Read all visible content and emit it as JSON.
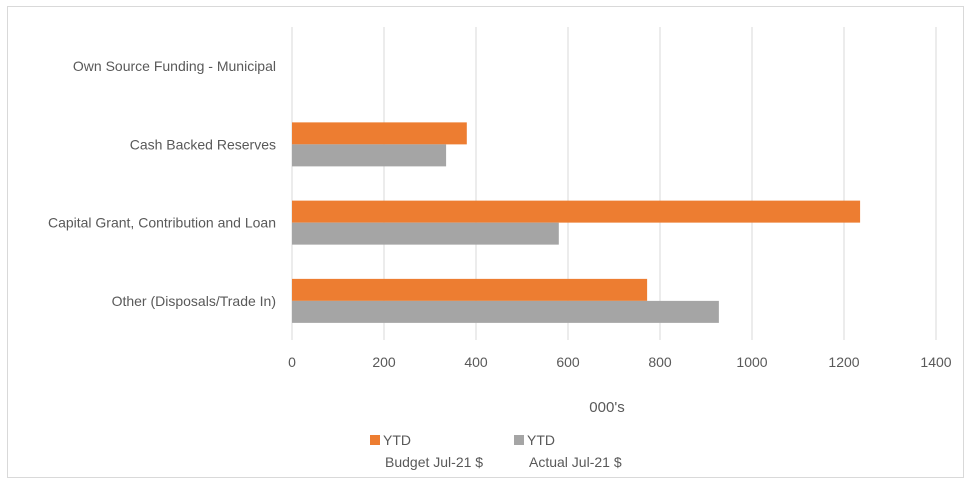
{
  "chart_data": {
    "type": "bar",
    "orientation": "horizontal",
    "categories": [
      "Own Source Funding - Municipal",
      "Cash Backed Reserves",
      "Capital Grant, Contribution and Loan",
      "Other (Disposals/Trade In)"
    ],
    "series": [
      {
        "name": "YTD Budget Jul-21 $",
        "legend_lines": [
          "YTD",
          "Budget Jul-21 $"
        ],
        "color": "#ed7d31",
        "values": [
          0,
          380,
          1235,
          772
        ]
      },
      {
        "name": "YTD Actual Jul-21 $",
        "legend_lines": [
          "YTD",
          "Actual Jul-21 $"
        ],
        "color": "#a5a5a5",
        "values": [
          0,
          335,
          580,
          928
        ]
      }
    ],
    "xlabel": "000's",
    "ylabel": "",
    "xlim": [
      0,
      1400
    ],
    "xticks": [
      "0",
      "200",
      "400",
      "600",
      "800",
      "1000",
      "1200",
      "1400"
    ],
    "grid": true,
    "gridline_color": "#d9d9d9",
    "legend_position": "bottom"
  }
}
